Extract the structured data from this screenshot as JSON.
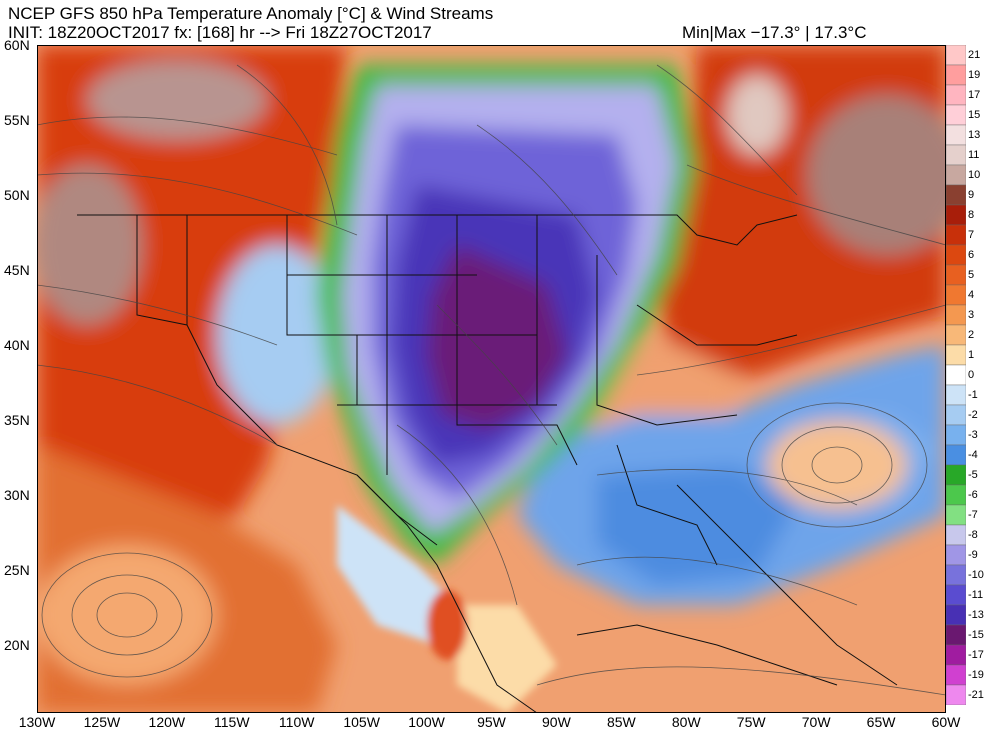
{
  "header": {
    "title": "NCEP GFS 850 hPa Temperature Anomaly [°C] & Wind Streams",
    "init_line": "INIT: 18Z20OCT2017 fx: [168] hr --> Fri 18Z27OCT2017",
    "minmax": "Min|Max −17.3° | 17.3°C"
  },
  "map": {
    "lat_labels": [
      "60N",
      "55N",
      "50N",
      "45N",
      "40N",
      "35N",
      "30N",
      "25N",
      "20N"
    ],
    "lon_labels": [
      "130W",
      "125W",
      "120W",
      "115W",
      "110W",
      "105W",
      "100W",
      "95W",
      "90W",
      "85W",
      "80W",
      "75W",
      "70W",
      "65W",
      "60W"
    ],
    "extent": {
      "lon_min": -130,
      "lon_max": -60,
      "lat_min": 15.5,
      "lat_max": 60
    }
  },
  "legend": {
    "labels": [
      "21",
      "19",
      "17",
      "15",
      "13",
      "11",
      "10",
      "9",
      "8",
      "7",
      "6",
      "5",
      "4",
      "3",
      "2",
      "1",
      "0",
      "-1",
      "-2",
      "-3",
      "-4",
      "-5",
      "-6",
      "-7",
      "-8",
      "-9",
      "-10",
      "-11",
      "-13",
      "-15",
      "-17",
      "-19",
      "-21"
    ],
    "colors": [
      "#ffc8c8",
      "#ff9e9e",
      "#ffb5c0",
      "#ffcfd8",
      "#f3e0e0",
      "#e5d0cc",
      "#c8a8a0",
      "#8a4030",
      "#a81e0a",
      "#c8300a",
      "#dc4810",
      "#e86020",
      "#f07830",
      "#f49850",
      "#f8b878",
      "#fcdca8",
      "#ffffff",
      "#cde3f7",
      "#a6ccf2",
      "#78b1ee",
      "#4a8fe2",
      "#28a828",
      "#4cc84c",
      "#82e082",
      "#c8c8ec",
      "#a096e6",
      "#7872dc",
      "#5a4cd0",
      "#4830b4",
      "#6a1870",
      "#a01ca0",
      "#d040d0",
      "#ee88ee"
    ]
  }
}
